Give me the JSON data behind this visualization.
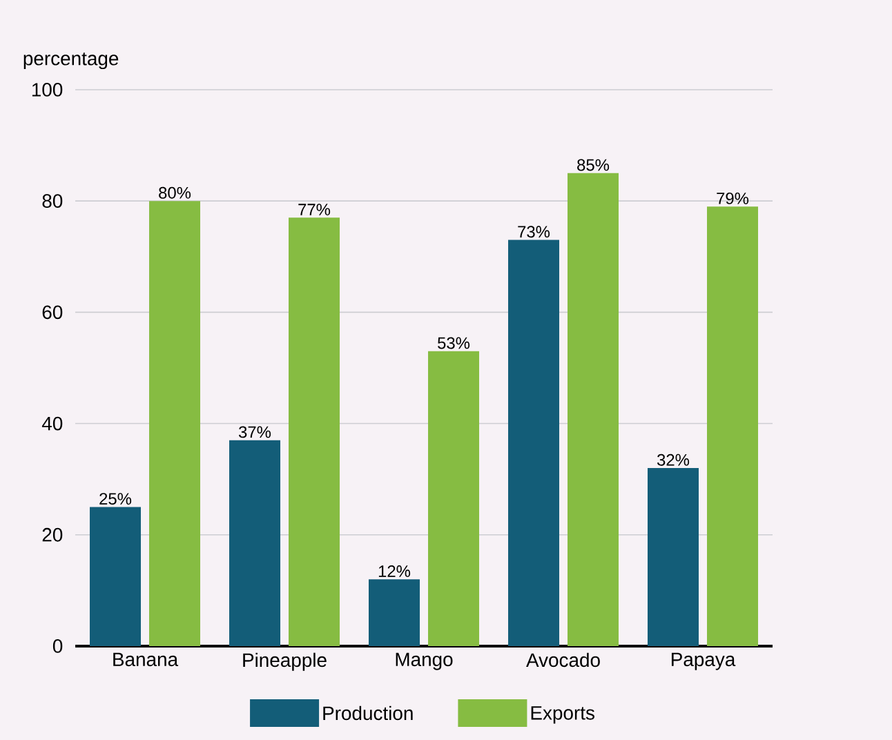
{
  "chart_data": {
    "type": "bar",
    "ylabel": "percentage",
    "categories": [
      "Banana",
      "Pineapple",
      "Mango",
      "Avocado",
      "Papaya"
    ],
    "series": [
      {
        "name": "Production",
        "color": "#135d78",
        "values": [
          25,
          37,
          12,
          73,
          32
        ],
        "value_labels": [
          "25%",
          "37%",
          "12%",
          "73%",
          "32%"
        ]
      },
      {
        "name": "Exports",
        "color": "#86bc42",
        "values": [
          80,
          77,
          53,
          85,
          79
        ],
        "value_labels": [
          "80%",
          "77%",
          "53%",
          "85%",
          "79%"
        ]
      }
    ],
    "ylim": [
      0,
      100
    ],
    "yticks": [
      0,
      20,
      40,
      60,
      80,
      100
    ],
    "grid": "y",
    "legend": "bottom"
  }
}
